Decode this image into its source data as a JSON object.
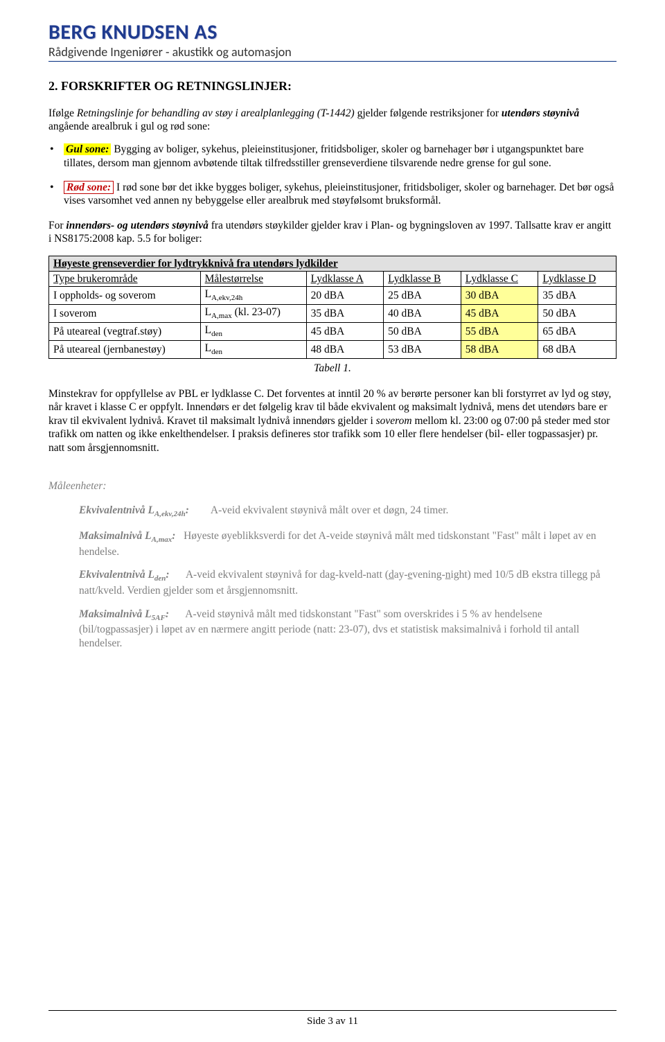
{
  "header": {
    "company": "BERG KNUDSEN AS",
    "subtitle": "Rådgivende Ingeniører - akustikk og automasjon"
  },
  "section_title": "2. FORSKRIFTER OG RETNINGSLINJER:",
  "intro": {
    "pre": "Ifølge ",
    "doc": "Retningslinje for behandling av støy i arealplanlegging (T-1442)",
    "mid": " gjelder følgende restriksjoner for ",
    "strong": "utendørs støynivå",
    "post": " angående arealbruk i gul og rød sone:"
  },
  "zones": {
    "gul": {
      "label": "Gul sone:",
      "text": "  Bygging av boliger, sykehus, pleieinstitusjoner, fritidsboliger, skoler og barnehager bør i utgangspunktet bare tillates, dersom man gjennom avbøtende tiltak tilfredsstiller grenseverdiene tilsvarende nedre grense for gul sone."
    },
    "rod": {
      "label": "Rød sone:",
      "text": "  I rød sone bør det ikke bygges boliger, sykehus, pleieinstitusjoner, fritidsboliger, skoler og barnehager. Det bør også vises varsomhet ved annen ny bebyggelse eller arealbruk med støyfølsomt bruksformål."
    }
  },
  "ind_out": {
    "pre": "For ",
    "strong": "innendørs- og utendørs støynivå",
    "post": " fra utendørs støykilder gjelder krav i Plan- og bygningsloven av 1997. Tallsatte krav er angitt i NS8175:2008 kap. 5.5 for boliger:"
  },
  "table": {
    "title": "Høyeste grenseverdier for lydtrykknivå fra utendørs lydkilder",
    "columns": [
      "Type brukerområde",
      "Målestørrelse",
      "Lydklasse A",
      "Lydklasse B",
      "Lydklasse C",
      "Lydklasse D"
    ],
    "rows": [
      {
        "area": "I oppholds- og soverom",
        "meas_html": "L<span class=\"sub\">A,ekv,24h</span>",
        "a": "20 dBA",
        "b": "25 dBA",
        "c": "30 dBA",
        "d": "35 dBA"
      },
      {
        "area": "I soverom",
        "meas_html": "L<span class=\"sub\">A,max</span> (kl. 23-07)",
        "a": "35 dBA",
        "b": "40 dBA",
        "c": "45 dBA",
        "d": "50 dBA"
      },
      {
        "area": "På uteareal (vegtraf.støy)",
        "meas_html": "L<span class=\"sub\">den</span>",
        "a": "45 dBA",
        "b": "50 dBA",
        "c": "55 dBA",
        "d": "65 dBA"
      },
      {
        "area": "På uteareal (jernbanestøy)",
        "meas_html": "L<span class=\"sub\">den</span>",
        "a": "48 dBA",
        "b": "53 dBA",
        "c": "58 dBA",
        "d": "68 dBA"
      }
    ],
    "caption": "Tabell 1.",
    "highlight_col": "c",
    "colors": {
      "header_bg": "#e0e0e0",
      "highlight_bg": "#ffff99",
      "border": "#000000"
    }
  },
  "para_pbl": {
    "p1": "Minstekrav for oppfyllelse av PBL er lydklasse C. Det forventes at inntil 20 % av berørte personer kan bli forstyrret av lyd og støy, når kravet i klasse C er oppfylt. Innendørs er det følgelig krav til både ekvivalent og maksimalt lydnivå, mens det utendørs bare er krav til ekvivalent lydnivå. Kravet til maksimalt lydnivå innendørs gjelder i ",
    "it": "soverom",
    "p2": " mellom kl. 23:00 og 07:00 på steder med stor trafikk om natten og ikke enkelthendelser. I praksis defineres stor trafikk som 10 eller flere hendelser (bil- eller togpassasjer) pr. natt som årsgjennomsnitt."
  },
  "units": {
    "heading": "Måleenheter:",
    "items": [
      {
        "term_html": "Ekvivalentnivå L<span class=\"termsub\">A,ekv,24h</span>:",
        "desc": "        A-veid ekvivalent støynivå målt over et døgn, 24 timer."
      },
      {
        "term_html": "Maksimalnivå L<span class=\"termsub\">A,max</span>:",
        "desc": "   Høyeste øyeblikksverdi for det A-veide støynivå målt med tidskonstant \"Fast\" målt i løpet av en hendelse."
      },
      {
        "term_html": "Ekvivalentnivå L<span class=\"termsub\">den</span>:",
        "desc": "      A-veid ekvivalent støynivå for dag-kveld-natt (day-evening-night) med 10/5 dB ekstra tillegg på natt/kveld. Verdien gjelder som et årsgjennomsnitt.",
        "den_pre": "A-veid ekvivalent støynivå for dag-kveld-natt (",
        "den_u1": "d",
        "den_m1": "ay-",
        "den_u2": "e",
        "den_m2": "vening-",
        "den_u3": "n",
        "den_m3": "ight) med 10/5 dB ekstra tillegg på natt/kveld. Verdien gjelder som et årsgjennomsnitt."
      },
      {
        "term_html": "Maksimalnivå L<span class=\"termsub\">5AF</span>:",
        "desc": "      A-veid støynivå målt med tidskonstant \"Fast\" som overskrides i 5 % av hendelsene (bil/togpassasjer) i løpet av en nærmere angitt periode (natt: 23-07), dvs et statistisk maksimalnivå i forhold til antall hendelser."
      }
    ]
  },
  "footer": "Side 3 av 11"
}
